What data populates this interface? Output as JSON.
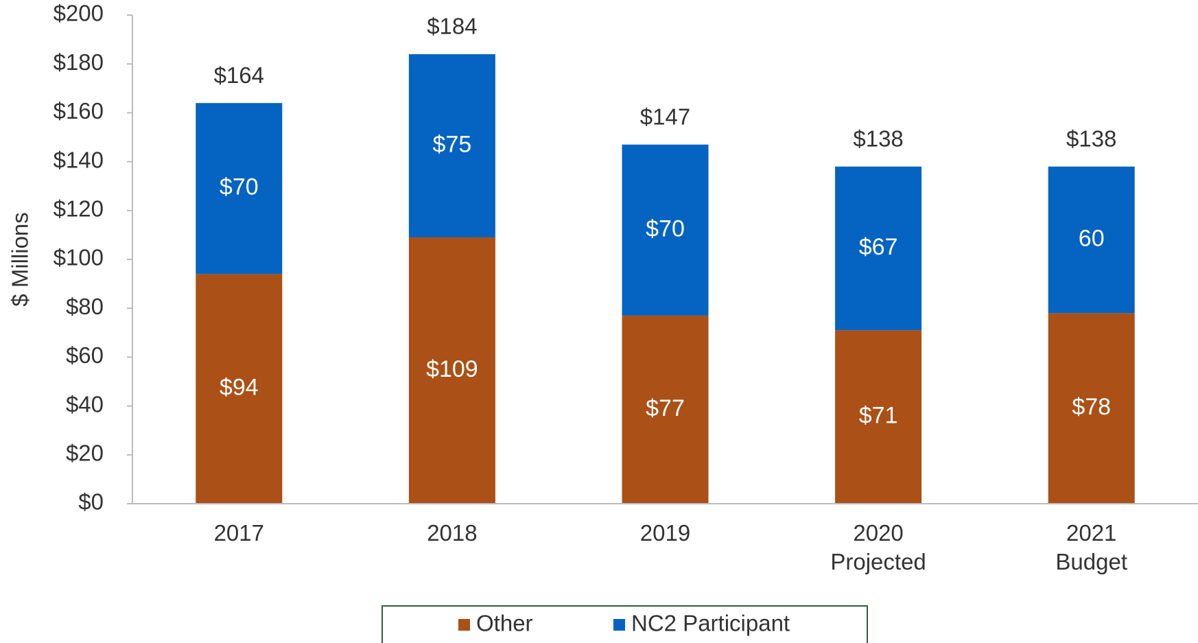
{
  "chart_data": {
    "type": "bar",
    "stacked": true,
    "y_label": "$ Millions",
    "categories": [
      "2017",
      "2018",
      "2019",
      "2020\nProjected",
      "2021\nBudget"
    ],
    "series": [
      {
        "name": "Other",
        "color": "#ab5016",
        "values": [
          94,
          109,
          77,
          71,
          78
        ],
        "value_labels": [
          "$94",
          "$109",
          "$77",
          "$71",
          "$78"
        ]
      },
      {
        "name": "NC2 Participant",
        "color": "#0563c1",
        "values": [
          70,
          75,
          70,
          67,
          60
        ],
        "value_labels": [
          "$70",
          "$75",
          "$70",
          "$67",
          "60"
        ]
      }
    ],
    "totals": [
      164,
      184,
      147,
      138,
      138
    ],
    "total_labels": [
      "$164",
      "$184",
      "$147",
      "$138",
      "$138"
    ],
    "ylim": [
      0,
      200
    ],
    "yticks": [
      {
        "value": 0,
        "label": "$0"
      },
      {
        "value": 20,
        "label": "$20"
      },
      {
        "value": 40,
        "label": "$40"
      },
      {
        "value": 60,
        "label": "$60"
      },
      {
        "value": 80,
        "label": "$80"
      },
      {
        "value": 100,
        "label": "$100"
      },
      {
        "value": 120,
        "label": "$120"
      },
      {
        "value": 140,
        "label": "$140"
      },
      {
        "value": 160,
        "label": "$160"
      },
      {
        "value": 180,
        "label": "$180"
      },
      {
        "value": 200,
        "label": "$200"
      }
    ],
    "legend": "bottom"
  }
}
